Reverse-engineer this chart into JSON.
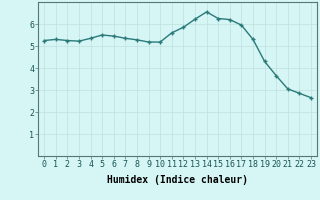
{
  "xlabel": "Humidex (Indice chaleur)",
  "x": [
    0,
    1,
    2,
    3,
    4,
    5,
    6,
    7,
    8,
    9,
    10,
    11,
    12,
    13,
    14,
    15,
    16,
    17,
    18,
    19,
    20,
    21,
    22,
    23
  ],
  "y": [
    5.25,
    5.3,
    5.25,
    5.22,
    5.35,
    5.5,
    5.45,
    5.35,
    5.28,
    5.18,
    5.18,
    5.6,
    5.85,
    6.22,
    6.55,
    6.25,
    6.2,
    5.95,
    5.3,
    4.3,
    3.65,
    3.05,
    2.85,
    2.65
  ],
  "background_color": "#d6f5f5",
  "grid_color": "#c0e0e0",
  "line_color": "#2a7a7a",
  "marker_color": "#2a7a7a",
  "ylim": [
    0,
    7
  ],
  "xlim": [
    -0.5,
    23.5
  ],
  "yticks": [
    1,
    2,
    3,
    4,
    5,
    6
  ],
  "xticks": [
    0,
    1,
    2,
    3,
    4,
    5,
    6,
    7,
    8,
    9,
    10,
    11,
    12,
    13,
    14,
    15,
    16,
    17,
    18,
    19,
    20,
    21,
    22,
    23
  ],
  "xlabel_fontsize": 7,
  "tick_fontsize": 6,
  "line_width": 1.0,
  "marker_size": 2.5
}
